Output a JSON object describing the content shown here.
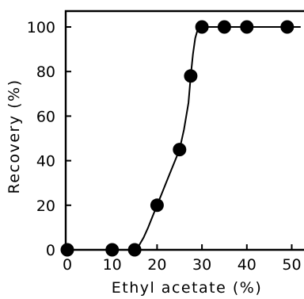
{
  "chart_data": {
    "type": "scatter",
    "title": "",
    "xlabel": "Ethyl acetate (%)",
    "ylabel": "Recovery (%)",
    "xlim": [
      0,
      52
    ],
    "ylim": [
      0,
      108
    ],
    "xticks": [
      0,
      10,
      20,
      30,
      40,
      50
    ],
    "yticks": [
      0,
      20,
      40,
      60,
      80,
      100
    ],
    "xtick_labels": [
      "0",
      "10",
      "20",
      "30",
      "40",
      "50"
    ],
    "ytick_labels": [
      "0",
      "20",
      "40",
      "60",
      "80",
      "100"
    ],
    "grid": false,
    "legend": "none",
    "series": [
      {
        "points": [
          {
            "x": 0,
            "y": 0
          },
          {
            "x": 10,
            "y": 0
          },
          {
            "x": 15,
            "y": 0
          },
          {
            "x": 20,
            "y": 20
          },
          {
            "x": 25,
            "y": 45
          },
          {
            "x": 27.5,
            "y": 78
          },
          {
            "x": 30,
            "y": 100
          },
          {
            "x": 35,
            "y": 100
          },
          {
            "x": 40,
            "y": 100
          },
          {
            "x": 49,
            "y": 100
          }
        ]
      }
    ],
    "fit_curve": [
      [
        0,
        0
      ],
      [
        14,
        0
      ],
      [
        15,
        0.3
      ],
      [
        16,
        2
      ],
      [
        17,
        5.5
      ],
      [
        18,
        10
      ],
      [
        19,
        15
      ],
      [
        20,
        20
      ],
      [
        21,
        25
      ],
      [
        22,
        30
      ],
      [
        23,
        35
      ],
      [
        24,
        40
      ],
      [
        25,
        45
      ],
      [
        26,
        54
      ],
      [
        27,
        66
      ],
      [
        27.5,
        78
      ],
      [
        28,
        88
      ],
      [
        28.5,
        95
      ],
      [
        29,
        98.5
      ],
      [
        30,
        100
      ],
      [
        52,
        100
      ]
    ]
  }
}
